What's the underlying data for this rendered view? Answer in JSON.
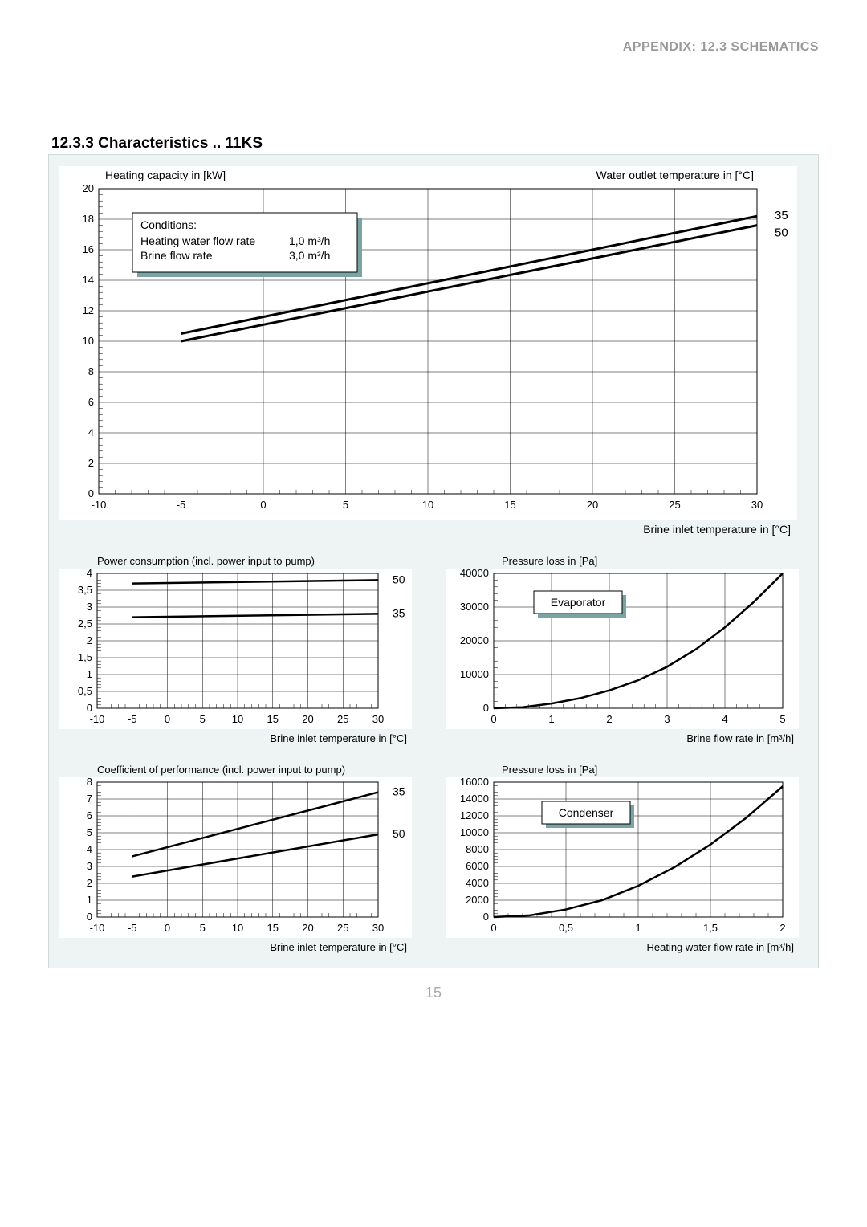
{
  "header": "APPENDIX: 12.3 SCHEMATICS",
  "section_title": "12.3.3 Characteristics .. 11KS",
  "page_number": "15",
  "panel_bg": "#eef3f3",
  "chart_bg": "#ffffff",
  "grid_color": "#000000",
  "line_color": "#000000",
  "text_color": "#000000",
  "chart1": {
    "title_left": "Heating capacity in [kW]",
    "title_right": "Water outlet temperature in [°C]",
    "xlabel": "Brine inlet temperature in [°C]",
    "xmin": -10,
    "xmax": 30,
    "xticks": [
      -10,
      -5,
      0,
      5,
      10,
      15,
      20,
      25,
      30
    ],
    "ymin": 0,
    "ymax": 20,
    "yticks": [
      0,
      2,
      4,
      6,
      8,
      10,
      12,
      14,
      16,
      18,
      20
    ],
    "series35": {
      "label": "35",
      "points": [
        [
          -5,
          10.5
        ],
        [
          30,
          18.2
        ]
      ]
    },
    "series50": {
      "label": "50",
      "points": [
        [
          -5,
          10.0
        ],
        [
          30,
          17.6
        ]
      ]
    },
    "conditions": {
      "heading": "Conditions:",
      "rows": [
        [
          "Heating water flow rate",
          "1,0 m³/h"
        ],
        [
          "Brine flow rate",
          "3,0 m³/h"
        ]
      ]
    },
    "line_width": 3
  },
  "chart2": {
    "title": "Power consumption (incl. power input to pump)",
    "xlabel": "Brine inlet temperature in [°C]",
    "xmin": -10,
    "xmax": 30,
    "xticks": [
      -10,
      -5,
      0,
      5,
      10,
      15,
      20,
      25,
      30
    ],
    "ymin": 0,
    "ymax": 4,
    "yticks": [
      0,
      0.5,
      1,
      1.5,
      2,
      2.5,
      3,
      3.5,
      4
    ],
    "ytick_labels": [
      "0",
      "0,5",
      "1",
      "1,5",
      "2",
      "2,5",
      "3",
      "3,5",
      "4"
    ],
    "series50": {
      "label": "50",
      "points": [
        [
          -5,
          3.7
        ],
        [
          30,
          3.8
        ]
      ]
    },
    "series35": {
      "label": "35",
      "points": [
        [
          -5,
          2.7
        ],
        [
          30,
          2.8
        ]
      ]
    },
    "line_width": 2.5
  },
  "chart3": {
    "title": "Pressure loss in [Pa]",
    "xlabel": "Brine flow rate in  [m³/h]",
    "xmin": 0,
    "xmax": 5,
    "xticks": [
      0,
      1,
      2,
      3,
      4,
      5
    ],
    "ymin": 0,
    "ymax": 40000,
    "yticks": [
      0,
      10000,
      20000,
      30000,
      40000
    ],
    "box_label": "Evaporator",
    "curve": [
      [
        0,
        0
      ],
      [
        0.5,
        300
      ],
      [
        1,
        1400
      ],
      [
        1.5,
        3000
      ],
      [
        2,
        5300
      ],
      [
        2.5,
        8300
      ],
      [
        3,
        12300
      ],
      [
        3.5,
        17500
      ],
      [
        4,
        24000
      ],
      [
        4.5,
        31500
      ],
      [
        5,
        40000
      ]
    ],
    "line_width": 2.5
  },
  "chart4": {
    "title": "Coefficient of performance (incl. power input to pump)",
    "xlabel": "Brine inlet temperature in [°C]",
    "xmin": -10,
    "xmax": 30,
    "xticks": [
      -10,
      -5,
      0,
      5,
      10,
      15,
      20,
      25,
      30
    ],
    "ymin": 0,
    "ymax": 8,
    "yticks": [
      0,
      1,
      2,
      3,
      4,
      5,
      6,
      7,
      8
    ],
    "series35": {
      "label": "35",
      "points": [
        [
          -5,
          3.6
        ],
        [
          30,
          7.4
        ]
      ]
    },
    "series50": {
      "label": "50",
      "points": [
        [
          -5,
          2.4
        ],
        [
          30,
          4.9
        ]
      ]
    },
    "line_width": 2.5
  },
  "chart5": {
    "title": "Pressure loss in [Pa]",
    "xlabel": "Heating water flow rate in  [m³/h]",
    "xmin": 0,
    "xmax": 2,
    "xticks": [
      0,
      0.5,
      1,
      1.5,
      2
    ],
    "xtick_labels": [
      "0",
      "0,5",
      "1",
      "1,5",
      "2"
    ],
    "ymin": 0,
    "ymax": 16000,
    "yticks": [
      0,
      2000,
      4000,
      6000,
      8000,
      10000,
      12000,
      14000,
      16000
    ],
    "box_label": "Condenser",
    "curve": [
      [
        0,
        0
      ],
      [
        0.25,
        200
      ],
      [
        0.5,
        900
      ],
      [
        0.75,
        2000
      ],
      [
        1,
        3700
      ],
      [
        1.25,
        5900
      ],
      [
        1.5,
        8600
      ],
      [
        1.75,
        11800
      ],
      [
        2,
        15500
      ]
    ],
    "line_width": 2.5
  }
}
